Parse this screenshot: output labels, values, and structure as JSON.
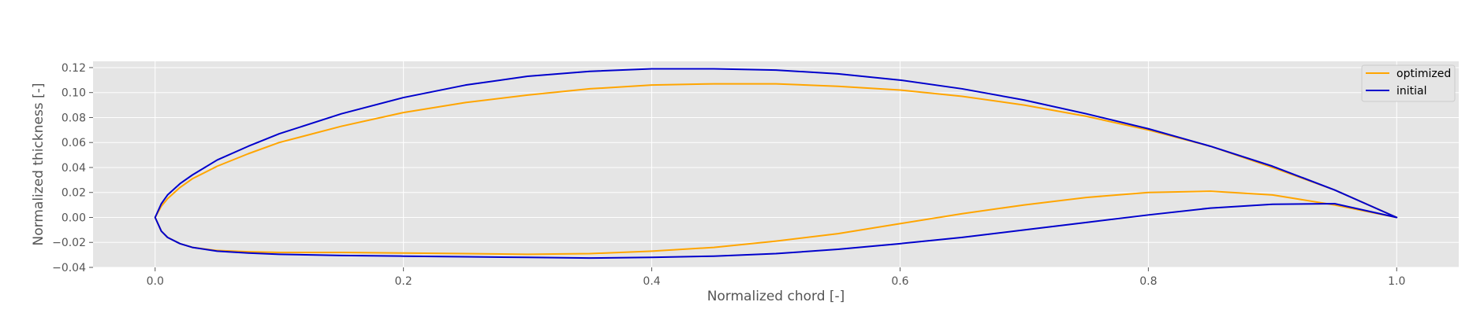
{
  "chart_data": {
    "type": "line",
    "title": "",
    "xlabel": "Normalized chord [-]",
    "ylabel": "Normalized thickness [-]",
    "xlim": [
      -0.05,
      1.05
    ],
    "ylim": [
      -0.04,
      0.125
    ],
    "xticks": [
      0.0,
      0.2,
      0.4,
      0.6,
      0.8,
      1.0
    ],
    "xtick_labels": [
      "0.0",
      "0.2",
      "0.4",
      "0.6",
      "0.8",
      "1.0"
    ],
    "yticks": [
      -0.04,
      -0.02,
      0.0,
      0.02,
      0.04,
      0.06,
      0.08,
      0.1,
      0.12
    ],
    "ytick_labels": [
      "−0.04",
      "−0.02",
      "0.00",
      "0.02",
      "0.04",
      "0.06",
      "0.08",
      "0.10",
      "0.12"
    ],
    "grid": true,
    "legend_position": "top-right",
    "series": [
      {
        "name": "optimized",
        "color": "#ffa500",
        "x": [
          1.0,
          0.95,
          0.9,
          0.85,
          0.8,
          0.75,
          0.7,
          0.65,
          0.6,
          0.55,
          0.5,
          0.45,
          0.4,
          0.35,
          0.3,
          0.25,
          0.2,
          0.15,
          0.1,
          0.075,
          0.05,
          0.03,
          0.02,
          0.01,
          0.005,
          0.0,
          0.005,
          0.01,
          0.02,
          0.03,
          0.05,
          0.075,
          0.1,
          0.15,
          0.2,
          0.25,
          0.3,
          0.35,
          0.4,
          0.45,
          0.5,
          0.55,
          0.6,
          0.65,
          0.7,
          0.75,
          0.8,
          0.85,
          0.9,
          0.95,
          1.0
        ],
        "y": [
          0.0,
          0.022,
          0.04,
          0.057,
          0.07,
          0.081,
          0.09,
          0.097,
          0.102,
          0.105,
          0.107,
          0.107,
          0.106,
          0.103,
          0.098,
          0.092,
          0.084,
          0.073,
          0.06,
          0.051,
          0.041,
          0.031,
          0.024,
          0.015,
          0.009,
          0.0,
          -0.011,
          -0.016,
          -0.021,
          -0.024,
          -0.0265,
          -0.0275,
          -0.028,
          -0.028,
          -0.0285,
          -0.029,
          -0.0295,
          -0.029,
          -0.027,
          -0.024,
          -0.019,
          -0.013,
          -0.005,
          0.003,
          0.01,
          0.016,
          0.02,
          0.021,
          0.018,
          0.01,
          0.0
        ]
      },
      {
        "name": "initial",
        "color": "#0000cc",
        "x": [
          1.0,
          0.95,
          0.9,
          0.85,
          0.8,
          0.75,
          0.7,
          0.65,
          0.6,
          0.55,
          0.5,
          0.45,
          0.4,
          0.35,
          0.3,
          0.25,
          0.2,
          0.15,
          0.1,
          0.075,
          0.05,
          0.03,
          0.02,
          0.01,
          0.005,
          0.0,
          0.005,
          0.01,
          0.02,
          0.03,
          0.05,
          0.075,
          0.1,
          0.15,
          0.2,
          0.25,
          0.3,
          0.35,
          0.4,
          0.45,
          0.5,
          0.55,
          0.6,
          0.65,
          0.7,
          0.75,
          0.8,
          0.85,
          0.9,
          0.95,
          1.0
        ],
        "y": [
          0.0,
          0.022,
          0.041,
          0.057,
          0.071,
          0.083,
          0.094,
          0.103,
          0.11,
          0.115,
          0.118,
          0.119,
          0.119,
          0.117,
          0.113,
          0.106,
          0.096,
          0.083,
          0.067,
          0.057,
          0.046,
          0.034,
          0.027,
          0.018,
          0.011,
          0.0,
          -0.011,
          -0.016,
          -0.021,
          -0.024,
          -0.027,
          -0.0285,
          -0.0295,
          -0.0305,
          -0.031,
          -0.0315,
          -0.032,
          -0.0325,
          -0.032,
          -0.031,
          -0.029,
          -0.0255,
          -0.021,
          -0.016,
          -0.01,
          -0.004,
          0.002,
          0.0075,
          0.0105,
          0.011,
          0.0
        ]
      }
    ]
  }
}
